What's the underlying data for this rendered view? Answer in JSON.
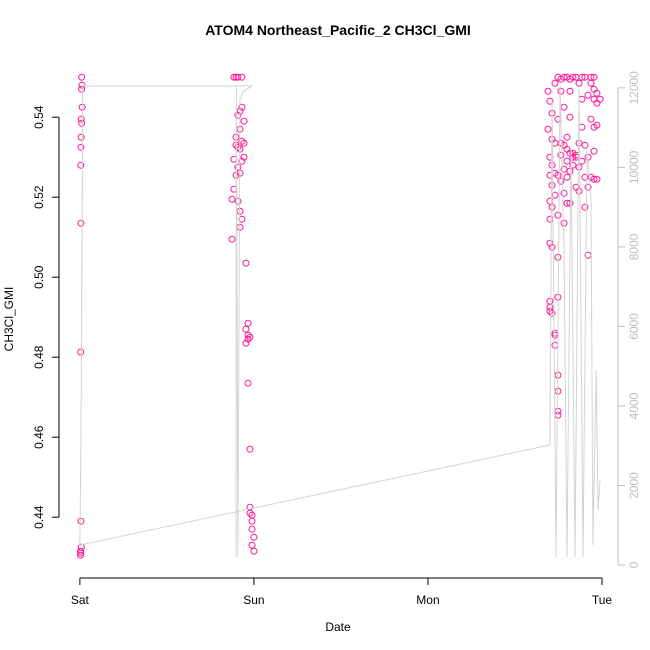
{
  "chart_data": {
    "type": "scatter",
    "title": "ATOM4 Northeast_Pacific_2 CH3Cl_GMI",
    "xlabel": "Date",
    "ylabel": "CH3Cl_GMI",
    "xlim": [
      -0.12,
      3.092
    ],
    "xticks": [
      {
        "value": 0,
        "label": "Sat"
      },
      {
        "value": 1,
        "label": "Sun"
      },
      {
        "value": 2,
        "label": "Mon"
      },
      {
        "value": 3,
        "label": "Tue"
      }
    ],
    "ylim": [
      0.4248,
      0.5543
    ],
    "yticks": [
      0.44,
      0.46,
      0.48,
      {
        "value": 0.5,
        "label": "0.50"
      },
      0.52,
      0.54
    ],
    "y2lim": [
      -325,
      12700
    ],
    "y2ticks": [
      0,
      2000,
      4000,
      6000,
      8000,
      10000,
      12000
    ],
    "y2_color": "#bebebe",
    "series": [
      {
        "type": "scatter",
        "color": "#ff1493",
        "x": [
          0.01,
          0.012,
          0.01,
          0.013,
          0.008,
          0.01,
          0.007,
          0.006,
          0.005,
          0.006,
          0.005,
          0.006,
          0.008,
          0.004,
          0.005,
          0.003,
          0.885,
          0.897,
          0.908,
          0.931,
          0.92,
          0.931,
          0.908,
          0.943,
          0.92,
          0.897,
          0.931,
          0.908,
          0.897,
          0.92,
          0.943,
          0.943,
          0.931,
          0.885,
          0.908,
          0.897,
          0.92,
          0.885,
          0.874,
          0.908,
          0.92,
          0.931,
          0.92,
          0.874,
          0.954,
          0.966,
          0.954,
          0.966,
          0.977,
          0.966,
          0.954,
          0.966,
          0.977,
          0.977,
          0.977,
          0.989,
          0.989,
          0.989,
          1.0,
          0.989,
          1.0,
          2.69,
          2.701,
          2.713,
          2.69,
          2.713,
          2.701,
          2.713,
          2.701,
          2.713,
          2.701,
          2.713,
          2.701,
          2.701,
          2.713,
          2.701,
          2.701,
          2.701,
          2.713,
          2.73,
          2.73,
          2.73,
          2.73,
          2.747,
          2.73,
          2.747,
          2.73,
          2.73,
          2.747,
          2.747,
          2.747,
          2.747,
          2.747,
          2.747,
          2.747,
          2.747,
          2.764,
          2.764,
          2.764,
          2.764,
          2.764,
          2.782,
          2.782,
          2.782,
          2.782,
          2.782,
          2.782,
          2.799,
          2.799,
          2.799,
          2.799,
          2.799,
          2.799,
          2.816,
          2.816,
          2.816,
          2.816,
          2.816,
          2.816,
          2.833,
          2.833,
          2.833,
          2.833,
          2.851,
          2.851,
          2.851,
          2.851,
          2.868,
          2.868,
          2.868,
          2.868,
          2.885,
          2.885,
          2.885,
          2.885,
          2.902,
          2.902,
          2.902,
          2.902,
          2.92,
          2.92,
          2.92,
          2.92,
          2.937,
          2.937,
          2.937,
          2.937,
          2.954,
          2.954,
          2.954,
          2.954,
          2.954,
          2.954,
          2.971,
          2.971,
          2.971,
          2.971,
          2.989
        ],
        "values": [
          0.55,
          0.548,
          0.547,
          0.5425,
          0.5395,
          0.5385,
          0.535,
          0.5325,
          0.528,
          0.5135,
          0.4813,
          0.439,
          0.4325,
          0.4315,
          0.431,
          0.4305,
          0.55,
          0.55,
          0.55,
          0.55,
          0.5415,
          0.5425,
          0.5405,
          0.539,
          0.537,
          0.535,
          0.534,
          0.5325,
          0.533,
          0.532,
          0.5335,
          0.53,
          0.529,
          0.5295,
          0.5275,
          0.5255,
          0.526,
          0.522,
          0.5195,
          0.519,
          0.5165,
          0.5145,
          0.5125,
          0.5095,
          0.5035,
          0.4885,
          0.487,
          0.4855,
          0.485,
          0.4845,
          0.4835,
          0.4735,
          0.457,
          0.4425,
          0.441,
          0.4405,
          0.439,
          0.437,
          0.435,
          0.433,
          0.4315,
          0.5465,
          0.544,
          0.541,
          0.537,
          0.5345,
          0.53,
          0.528,
          0.5255,
          0.523,
          0.519,
          0.5175,
          0.5145,
          0.5085,
          0.5075,
          0.494,
          0.4925,
          0.4915,
          0.491,
          0.486,
          0.4855,
          0.483,
          0.526,
          0.55,
          0.5485,
          0.5395,
          0.5335,
          0.5205,
          0.5255,
          0.5155,
          0.505,
          0.495,
          0.4755,
          0.4715,
          0.4665,
          0.4655,
          0.5495,
          0.5465,
          0.5335,
          0.5305,
          0.524,
          0.55,
          0.5425,
          0.533,
          0.527,
          0.521,
          0.5135,
          0.55,
          0.535,
          0.532,
          0.529,
          0.525,
          0.5185,
          0.5495,
          0.5465,
          0.54,
          0.531,
          0.5265,
          0.5185,
          0.55,
          0.531,
          0.53,
          0.528,
          0.55,
          0.5305,
          0.53,
          0.5225,
          0.5485,
          0.5335,
          0.5275,
          0.5215,
          0.55,
          0.5445,
          0.5375,
          0.529,
          0.55,
          0.533,
          0.525,
          0.5175,
          0.5455,
          0.53,
          0.5225,
          0.5055,
          0.55,
          0.5485,
          0.5395,
          0.525,
          0.55,
          0.547,
          0.5445,
          0.5375,
          0.5315,
          0.5245,
          0.546,
          0.5435,
          0.538,
          0.5245,
          0.5445
        ]
      },
      {
        "type": "line",
        "axis": "y2",
        "color": "#d3d3d3",
        "x": [
          0.897,
          0.899,
          0.908,
          0.92,
          0.937,
          0.989,
          0.017,
          0.006,
          0.0,
          2.701,
          2.713,
          2.736,
          2.759,
          2.782,
          2.799,
          2.822,
          2.845,
          2.868,
          2.891,
          2.914,
          2.937,
          2.948,
          2.966,
          2.977,
          2.989
        ],
        "values": [
          200,
          12050,
          200,
          11700,
          11900,
          12050,
          12050,
          3145,
          503,
          3019,
          11700,
          200,
          12050,
          7925,
          200,
          10440,
          200,
          11950,
          200,
          10440,
          9183,
          503,
          4906,
          1384,
          2139
        ]
      }
    ]
  }
}
